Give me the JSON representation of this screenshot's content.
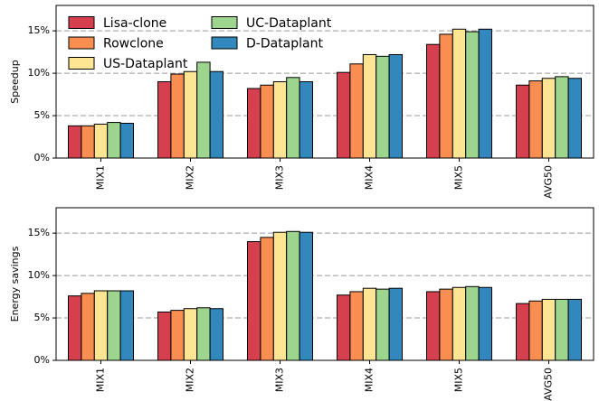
{
  "chart_data": [
    {
      "type": "bar",
      "ylabel": "Speedup",
      "legend": "upper left",
      "grid": true,
      "categories": [
        "MIX1",
        "MIX2",
        "MIX3",
        "MIX4",
        "MIX5",
        "AVG50"
      ],
      "ylim": [
        0,
        18
      ],
      "yticks": [
        {
          "value": 0,
          "label": "0%"
        },
        {
          "value": 5,
          "label": "5%"
        },
        {
          "value": 10,
          "label": "10%"
        },
        {
          "value": 15,
          "label": "15%"
        }
      ],
      "series": [
        {
          "name": "Lisa-clone",
          "color": "#d6404e",
          "values": [
            3.8,
            9.0,
            8.2,
            10.1,
            13.4,
            8.6
          ]
        },
        {
          "name": "Rowclone",
          "color": "#f98e52",
          "values": [
            3.8,
            9.9,
            8.6,
            11.1,
            14.6,
            9.1
          ]
        },
        {
          "name": "US-Dataplant",
          "color": "#fee593",
          "values": [
            4.0,
            10.2,
            9.0,
            12.2,
            15.2,
            9.4
          ]
        },
        {
          "name": "UC-Dataplant",
          "color": "#9dd58f",
          "values": [
            4.2,
            11.3,
            9.5,
            12.0,
            14.9,
            9.6
          ]
        },
        {
          "name": "D-Dataplant",
          "color": "#3288bd",
          "values": [
            4.1,
            10.2,
            9.0,
            12.2,
            15.2,
            9.4
          ]
        }
      ]
    },
    {
      "type": "bar",
      "ylabel": "Energy savings",
      "grid": true,
      "categories": [
        "MIX1",
        "MIX2",
        "MIX3",
        "MIX4",
        "MIX5",
        "AVG50"
      ],
      "ylim": [
        0,
        18
      ],
      "yticks": [
        {
          "value": 0,
          "label": "0%"
        },
        {
          "value": 5,
          "label": "5%"
        },
        {
          "value": 10,
          "label": "10%"
        },
        {
          "value": 15,
          "label": "15%"
        }
      ],
      "series": [
        {
          "color": "#d6404e",
          "values": [
            7.6,
            5.7,
            14.0,
            7.7,
            8.1,
            6.7
          ]
        },
        {
          "color": "#f98e52",
          "values": [
            7.9,
            5.9,
            14.5,
            8.1,
            8.4,
            7.0
          ]
        },
        {
          "color": "#fee593",
          "values": [
            8.2,
            6.1,
            15.1,
            8.5,
            8.6,
            7.2
          ]
        },
        {
          "color": "#9dd58f",
          "values": [
            8.2,
            6.2,
            15.2,
            8.4,
            8.7,
            7.2
          ]
        },
        {
          "color": "#3288bd",
          "values": [
            8.2,
            6.1,
            15.1,
            8.5,
            8.6,
            7.2
          ]
        }
      ]
    }
  ]
}
